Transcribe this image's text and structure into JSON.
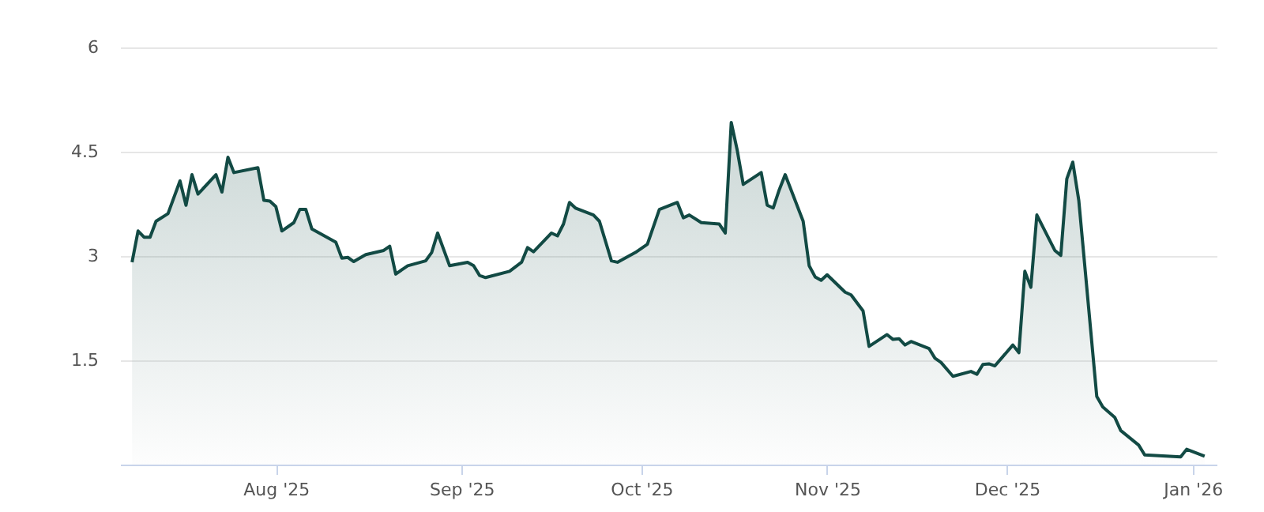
{
  "chart_data": {
    "type": "area",
    "legend": false,
    "grid": "y",
    "xlim": [
      "2025-07-06",
      "2026-01-05"
    ],
    "xticks": [
      {
        "value": "2025-08-01",
        "label": "Aug '25"
      },
      {
        "value": "2025-09-01",
        "label": "Sep '25"
      },
      {
        "value": "2025-10-01",
        "label": "Oct '25"
      },
      {
        "value": "2025-11-01",
        "label": "Nov '25"
      },
      {
        "value": "2025-12-01",
        "label": "Dec '25"
      },
      {
        "value": "2026-01-01",
        "label": "Jan '26"
      }
    ],
    "ylim": [
      0,
      6
    ],
    "yticks": [
      1.5,
      3,
      4.5,
      6
    ],
    "x": [
      "2025-07-08",
      "2025-07-09",
      "2025-07-10",
      "2025-07-11",
      "2025-07-12",
      "2025-07-14",
      "2025-07-16",
      "2025-07-17",
      "2025-07-18",
      "2025-07-19",
      "2025-07-22",
      "2025-07-23",
      "2025-07-24",
      "2025-07-25",
      "2025-07-29",
      "2025-07-30",
      "2025-07-31",
      "2025-08-01",
      "2025-08-02",
      "2025-08-04",
      "2025-08-05",
      "2025-08-06",
      "2025-08-07",
      "2025-08-11",
      "2025-08-12",
      "2025-08-13",
      "2025-08-14",
      "2025-08-16",
      "2025-08-19",
      "2025-08-20",
      "2025-08-21",
      "2025-08-23",
      "2025-08-26",
      "2025-08-27",
      "2025-08-28",
      "2025-08-30",
      "2025-09-02",
      "2025-09-03",
      "2025-09-04",
      "2025-09-05",
      "2025-09-09",
      "2025-09-11",
      "2025-09-12",
      "2025-09-13",
      "2025-09-16",
      "2025-09-17",
      "2025-09-18",
      "2025-09-19",
      "2025-09-20",
      "2025-09-23",
      "2025-09-24",
      "2025-09-26",
      "2025-09-27",
      "2025-09-30",
      "2025-10-02",
      "2025-10-04",
      "2025-10-07",
      "2025-10-08",
      "2025-10-09",
      "2025-10-11",
      "2025-10-14",
      "2025-10-15",
      "2025-10-16",
      "2025-10-17",
      "2025-10-18",
      "2025-10-21",
      "2025-10-22",
      "2025-10-23",
      "2025-10-24",
      "2025-10-25",
      "2025-10-28",
      "2025-10-29",
      "2025-10-30",
      "2025-10-31",
      "2025-11-01",
      "2025-11-04",
      "2025-11-05",
      "2025-11-07",
      "2025-11-08",
      "2025-11-11",
      "2025-11-12",
      "2025-11-13",
      "2025-11-14",
      "2025-11-15",
      "2025-11-18",
      "2025-11-19",
      "2025-11-20",
      "2025-11-22",
      "2025-11-25",
      "2025-11-26",
      "2025-11-27",
      "2025-11-28",
      "2025-11-29",
      "2025-12-02",
      "2025-12-03",
      "2025-12-04",
      "2025-12-05",
      "2025-12-06",
      "2025-12-09",
      "2025-12-10",
      "2025-12-11",
      "2025-12-12",
      "2025-12-13",
      "2025-12-16",
      "2025-12-17",
      "2025-12-19",
      "2025-12-20",
      "2025-12-23",
      "2025-12-24",
      "2025-12-30",
      "2025-12-31",
      "2026-01-03"
    ],
    "series": [
      {
        "color": "#124a44",
        "values": [
          2.91,
          3.36,
          3.27,
          3.27,
          3.5,
          3.61,
          4.08,
          3.73,
          4.17,
          3.89,
          4.17,
          3.92,
          4.42,
          4.2,
          4.27,
          3.8,
          3.79,
          3.71,
          3.36,
          3.48,
          3.67,
          3.67,
          3.39,
          3.2,
          2.97,
          2.98,
          2.92,
          3.02,
          3.08,
          3.14,
          2.74,
          2.86,
          2.93,
          3.05,
          3.33,
          2.86,
          2.91,
          2.86,
          2.72,
          2.69,
          2.78,
          2.91,
          3.12,
          3.06,
          3.33,
          3.29,
          3.46,
          3.77,
          3.69,
          3.59,
          3.5,
          2.93,
          2.91,
          3.05,
          3.17,
          3.67,
          3.77,
          3.55,
          3.59,
          3.48,
          3.46,
          3.33,
          4.92,
          4.52,
          4.03,
          4.2,
          3.73,
          3.69,
          3.95,
          4.17,
          3.5,
          2.86,
          2.7,
          2.65,
          2.73,
          2.48,
          2.44,
          2.21,
          1.7,
          1.87,
          1.8,
          1.81,
          1.72,
          1.77,
          1.67,
          1.53,
          1.47,
          1.27,
          1.34,
          1.3,
          1.44,
          1.45,
          1.42,
          1.72,
          1.61,
          2.78,
          2.55,
          3.59,
          3.08,
          3.01,
          4.11,
          4.35,
          3.8,
          0.98,
          0.83,
          0.68,
          0.49,
          0.28,
          0.14,
          0.11,
          0.22,
          0.12
        ]
      }
    ]
  }
}
